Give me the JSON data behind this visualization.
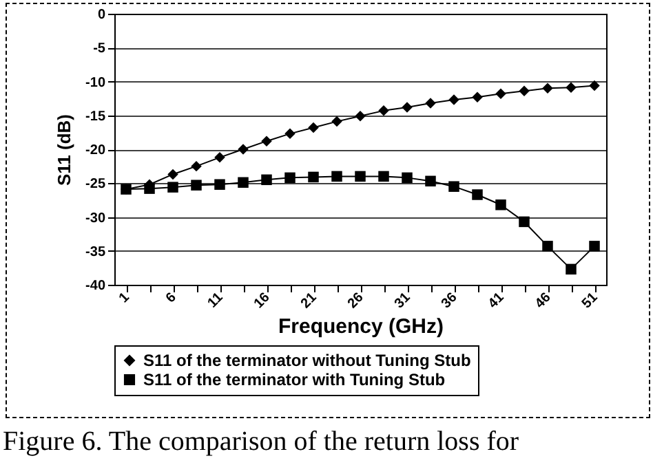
{
  "chart_data": {
    "type": "line",
    "xlabel": "Frequency (GHz)",
    "ylabel": "S11 (dB)",
    "x": [
      1,
      3.5,
      6,
      8.5,
      11,
      13.5,
      16,
      18.5,
      21,
      23.5,
      26,
      28.5,
      31,
      33.5,
      36,
      38.5,
      41,
      43.5,
      46,
      48.5,
      51
    ],
    "xlim": [
      -0.25,
      52.25
    ],
    "xticks": [
      1,
      {
        "value": 3.5,
        "label": null
      },
      6,
      {
        "value": 8.5,
        "label": null
      },
      11,
      {
        "value": 13.5,
        "label": null
      },
      16,
      {
        "value": 18.5,
        "label": null
      },
      21,
      {
        "value": 23.5,
        "label": null
      },
      26,
      {
        "value": 28.5,
        "label": null
      },
      31,
      {
        "value": 33.5,
        "label": null
      },
      36,
      {
        "value": 38.5,
        "label": null
      },
      41,
      {
        "value": 43.5,
        "label": null
      },
      46,
      {
        "value": 48.5,
        "label": null
      },
      51
    ],
    "series": [
      {
        "name": "S11 of the terminator without Tuning Stub",
        "color": "#000000",
        "marker": "diamond",
        "values": [
          -25.9,
          -25.2,
          -23.7,
          -22.5,
          -21.2,
          -20,
          -18.8,
          -17.7,
          -16.8,
          -15.9,
          -15.1,
          -14.3,
          -13.8,
          -13.2,
          -12.7,
          -12.3,
          -11.8,
          -11.4,
          -11,
          -10.9,
          -10.6
        ]
      },
      {
        "name": "S11 of the terminator with Tuning Stub",
        "color": "#000000",
        "marker": "square",
        "values": [
          -25.9,
          -25.8,
          -25.6,
          -25.3,
          -25.2,
          -24.9,
          -24.5,
          -24.2,
          -24.1,
          -24,
          -24,
          -24,
          -24.2,
          -24.7,
          -25.5,
          -26.7,
          -28.2,
          -30.7,
          -34.3,
          -37.7,
          -34.3
        ]
      }
    ],
    "ylim": [
      -40,
      0
    ],
    "yticks": [
      -40,
      -35,
      -30,
      -25,
      -20,
      -15,
      -10,
      -5,
      0
    ],
    "grid": "y",
    "legend": "bottom",
    "line_style": "solid",
    "annotations": [
      "Figure 6. The comparison of the return loss for"
    ]
  }
}
